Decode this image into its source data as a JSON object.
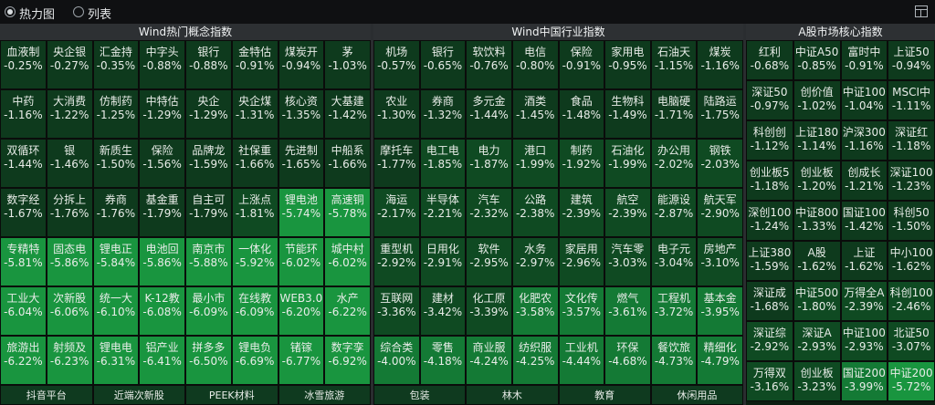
{
  "toolbar": {
    "heatmap_label": "热力图",
    "list_label": "列表",
    "heatmap_selected": true
  },
  "colors": {
    "l1": "#0e3a1d",
    "l2": "#0f4a22",
    "l3": "#147a35",
    "l4": "#19953f"
  },
  "panels": [
    {
      "title": "Wind热门概念指数",
      "rows": [
        [
          [
            "血液制",
            "-0.25%"
          ],
          [
            "央企银",
            "-0.27%"
          ],
          [
            "汇金持",
            "-0.35%"
          ],
          [
            "中字头",
            "-0.88%"
          ],
          [
            "银行",
            "-0.88%"
          ],
          [
            "金特估",
            "-0.91%"
          ],
          [
            "煤炭开",
            "-0.94%"
          ],
          [
            "茅",
            "-1.03%"
          ]
        ],
        [
          [
            "中药",
            "-1.16%"
          ],
          [
            "大消费",
            "-1.22%"
          ],
          [
            "仿制药",
            "-1.25%"
          ],
          [
            "中特估",
            "-1.29%"
          ],
          [
            "央企",
            "-1.29%"
          ],
          [
            "央企煤",
            "-1.31%"
          ],
          [
            "核心资",
            "-1.35%"
          ],
          [
            "大基建",
            "-1.42%"
          ]
        ],
        [
          [
            "双循环",
            "-1.44%"
          ],
          [
            "银",
            "-1.46%"
          ],
          [
            "新质生",
            "-1.50%"
          ],
          [
            "保险",
            "-1.56%"
          ],
          [
            "品牌龙",
            "-1.59%"
          ],
          [
            "社保重",
            "-1.66%"
          ],
          [
            "先进制",
            "-1.65%"
          ],
          [
            "中船系",
            "-1.66%"
          ]
        ],
        [
          [
            "数字经",
            "-1.67%"
          ],
          [
            "分拆上",
            "-1.76%"
          ],
          [
            "券商",
            "-1.76%"
          ],
          [
            "基金重",
            "-1.79%"
          ],
          [
            "自主可",
            "-1.79%"
          ],
          [
            "上涨点",
            "-1.81%"
          ],
          [
            "锂电池",
            "-5.74%"
          ],
          [
            "高速铜",
            "-5.78%"
          ]
        ],
        [
          [
            "专精特",
            "-5.81%"
          ],
          [
            "固态电",
            "-5.86%"
          ],
          [
            "锂电正",
            "-5.84%"
          ],
          [
            "电池回",
            "-5.86%"
          ],
          [
            "南京市",
            "-5.88%"
          ],
          [
            "一体化",
            "-5.92%"
          ],
          [
            "节能环",
            "-6.02%"
          ],
          [
            "城中村",
            "-6.02%"
          ]
        ],
        [
          [
            "工业大",
            "-6.04%"
          ],
          [
            "次新股",
            "-6.06%"
          ],
          [
            "统一大",
            "-6.10%"
          ],
          [
            "K-12教",
            "-6.08%"
          ],
          [
            "最小市",
            "-6.09%"
          ],
          [
            "在线教",
            "-6.09%"
          ],
          [
            "WEB3.0",
            "-6.20%"
          ],
          [
            "水产",
            "-6.22%"
          ]
        ],
        [
          [
            "旅游出",
            "-6.22%"
          ],
          [
            "射频及",
            "-6.23%"
          ],
          [
            "锂电电",
            "-6.31%"
          ],
          [
            "铝产业",
            "-6.41%"
          ],
          [
            "拼多多",
            "-6.50%"
          ],
          [
            "锂电负",
            "-6.69%"
          ],
          [
            "锗镓",
            "-6.77%"
          ],
          [
            "数字孪",
            "-6.92%"
          ]
        ]
      ],
      "footer": [
        "抖音平台",
        "近端次新股",
        "PEEK材料",
        "冰雪旅游"
      ]
    },
    {
      "title": "Wind中国行业指数",
      "rows": [
        [
          [
            "机场",
            "-0.57%"
          ],
          [
            "银行",
            "-0.65%"
          ],
          [
            "软饮料",
            "-0.76%"
          ],
          [
            "电信",
            "-0.80%"
          ],
          [
            "保险",
            "-0.91%"
          ],
          [
            "家用电",
            "-0.95%"
          ],
          [
            "石油天",
            "-1.15%"
          ],
          [
            "煤炭",
            "-1.16%"
          ]
        ],
        [
          [
            "农业",
            "-1.30%"
          ],
          [
            "券商",
            "-1.32%"
          ],
          [
            "多元金",
            "-1.44%"
          ],
          [
            "酒类",
            "-1.45%"
          ],
          [
            "食品",
            "-1.48%"
          ],
          [
            "生物科",
            "-1.49%"
          ],
          [
            "电脑硬",
            "-1.71%"
          ],
          [
            "陆路运",
            "-1.75%"
          ]
        ],
        [
          [
            "摩托车",
            "-1.77%"
          ],
          [
            "电工电",
            "-1.85%"
          ],
          [
            "电力",
            "-1.87%"
          ],
          [
            "港口",
            "-1.99%"
          ],
          [
            "制药",
            "-1.92%"
          ],
          [
            "石油化",
            "-1.99%"
          ],
          [
            "办公用",
            "-2.02%"
          ],
          [
            "钢铁",
            "-2.03%"
          ]
        ],
        [
          [
            "海运",
            "-2.17%"
          ],
          [
            "半导体",
            "-2.21%"
          ],
          [
            "汽车",
            "-2.32%"
          ],
          [
            "公路",
            "-2.38%"
          ],
          [
            "建筑",
            "-2.39%"
          ],
          [
            "航空",
            "-2.39%"
          ],
          [
            "能源设",
            "-2.87%"
          ],
          [
            "航天军",
            "-2.90%"
          ]
        ],
        [
          [
            "重型机",
            "-2.92%"
          ],
          [
            "日用化",
            "-2.91%"
          ],
          [
            "软件",
            "-2.95%"
          ],
          [
            "水务",
            "-2.97%"
          ],
          [
            "家居用",
            "-2.96%"
          ],
          [
            "汽车零",
            "-3.03%"
          ],
          [
            "电子元",
            "-3.04%"
          ],
          [
            "房地产",
            "-3.10%"
          ]
        ],
        [
          [
            "互联网",
            "-3.36%"
          ],
          [
            "建材",
            "-3.42%"
          ],
          [
            "化工原",
            "-3.39%"
          ],
          [
            "化肥农",
            "-3.58%"
          ],
          [
            "文化传",
            "-3.57%"
          ],
          [
            "燃气",
            "-3.61%"
          ],
          [
            "工程机",
            "-3.72%"
          ],
          [
            "基本金",
            "-3.95%"
          ]
        ],
        [
          [
            "综合类",
            "-4.00%"
          ],
          [
            "零售",
            "-4.18%"
          ],
          [
            "商业服",
            "-4.24%"
          ],
          [
            "纺织服",
            "-4.25%"
          ],
          [
            "工业机",
            "-4.44%"
          ],
          [
            "环保",
            "-4.68%"
          ],
          [
            "餐饮旅",
            "-4.73%"
          ],
          [
            "精细化",
            "-4.79%"
          ]
        ]
      ],
      "footer": [
        "包装",
        "林木",
        "教育",
        "休闲用品"
      ]
    },
    {
      "title": "A股市场核心指数",
      "rows": [
        [
          [
            "红利",
            "-0.68%"
          ],
          [
            "中证A50",
            "-0.85%"
          ],
          [
            "富时中",
            "-0.91%"
          ],
          [
            "上证50",
            "-0.94%"
          ]
        ],
        [
          [
            "深证50",
            "-0.97%"
          ],
          [
            "创价值",
            "-1.02%"
          ],
          [
            "中证100",
            "-1.04%"
          ],
          [
            "MSCI中",
            "-1.11%"
          ]
        ],
        [
          [
            "科创创",
            "-1.12%"
          ],
          [
            "上证180",
            "-1.14%"
          ],
          [
            "沪深300",
            "-1.16%"
          ],
          [
            "深证红",
            "-1.18%"
          ]
        ],
        [
          [
            "创业板5",
            "-1.18%"
          ],
          [
            "创业板",
            "-1.20%"
          ],
          [
            "创成长",
            "-1.21%"
          ],
          [
            "深证100",
            "-1.23%"
          ]
        ],
        [
          [
            "深创100",
            "-1.24%"
          ],
          [
            "中证800",
            "-1.33%"
          ],
          [
            "国证100",
            "-1.42%"
          ],
          [
            "科创50",
            "-1.50%"
          ]
        ],
        [
          [
            "上证380",
            "-1.59%"
          ],
          [
            "A股",
            "-1.62%"
          ],
          [
            "上证",
            "-1.62%"
          ],
          [
            "中小100",
            "-1.62%"
          ]
        ],
        [
          [
            "深证成",
            "-1.68%"
          ],
          [
            "中证500",
            "-1.80%"
          ],
          [
            "万得全A",
            "-2.39%"
          ],
          [
            "科创100",
            "-2.46%"
          ]
        ],
        [
          [
            "深证综",
            "-2.92%"
          ],
          [
            "深证A",
            "-2.93%"
          ],
          [
            "中证100",
            "-2.93%"
          ],
          [
            "北证50",
            "-3.07%"
          ]
        ],
        [
          [
            "万得双",
            "-3.16%"
          ],
          [
            "创业板",
            "-3.23%"
          ],
          [
            "国证200",
            "-3.99%"
          ],
          [
            "中证200",
            "-5.72%"
          ]
        ]
      ]
    }
  ]
}
